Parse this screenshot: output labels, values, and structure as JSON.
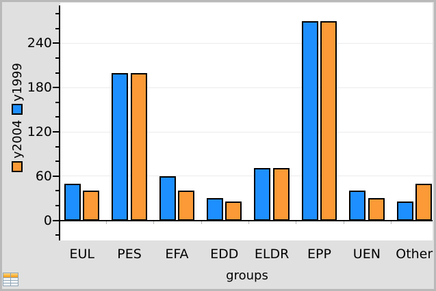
{
  "window": {
    "background": "#e0e0e0",
    "border_color": "#b9b9b9",
    "plot_background": "#ffffff"
  },
  "chart_data": {
    "type": "bar",
    "title": "",
    "xlabel": "groups",
    "categories": [
      "EUL",
      "PES",
      "EFA",
      "EDD",
      "ELDR",
      "EPP",
      "UEN",
      "Other"
    ],
    "series": [
      {
        "name": "y1999",
        "color": "#1E8FFF",
        "values": [
          50,
          200,
          60,
          30,
          71,
          270,
          40,
          26
        ]
      },
      {
        "name": "y2004",
        "color": "#FB9A36",
        "values": [
          40,
          200,
          40,
          26,
          71,
          270,
          30,
          50
        ]
      }
    ],
    "legend": [
      {
        "label": "y2004",
        "color": "#FB9A36"
      },
      {
        "label": "y1999",
        "color": "#1E8FFF"
      }
    ],
    "legend_position": "rotated along y-axis",
    "ylim": [
      -27,
      293
    ],
    "yticks_major": [
      0,
      60,
      120,
      180,
      240
    ],
    "ytick_labels": [
      "0",
      "60",
      "120",
      "180",
      "240"
    ],
    "yticks_minor": [
      -20,
      20,
      40,
      80,
      100,
      140,
      160,
      200,
      220,
      260,
      280
    ],
    "grid": "horizontal gridlines at major ticks",
    "gridline_color": "#ebebeb",
    "axis_color": "#000000",
    "bar_border_color": "#000000"
  },
  "icons": {
    "bottom_left": "spreadsheet-page-icon"
  }
}
